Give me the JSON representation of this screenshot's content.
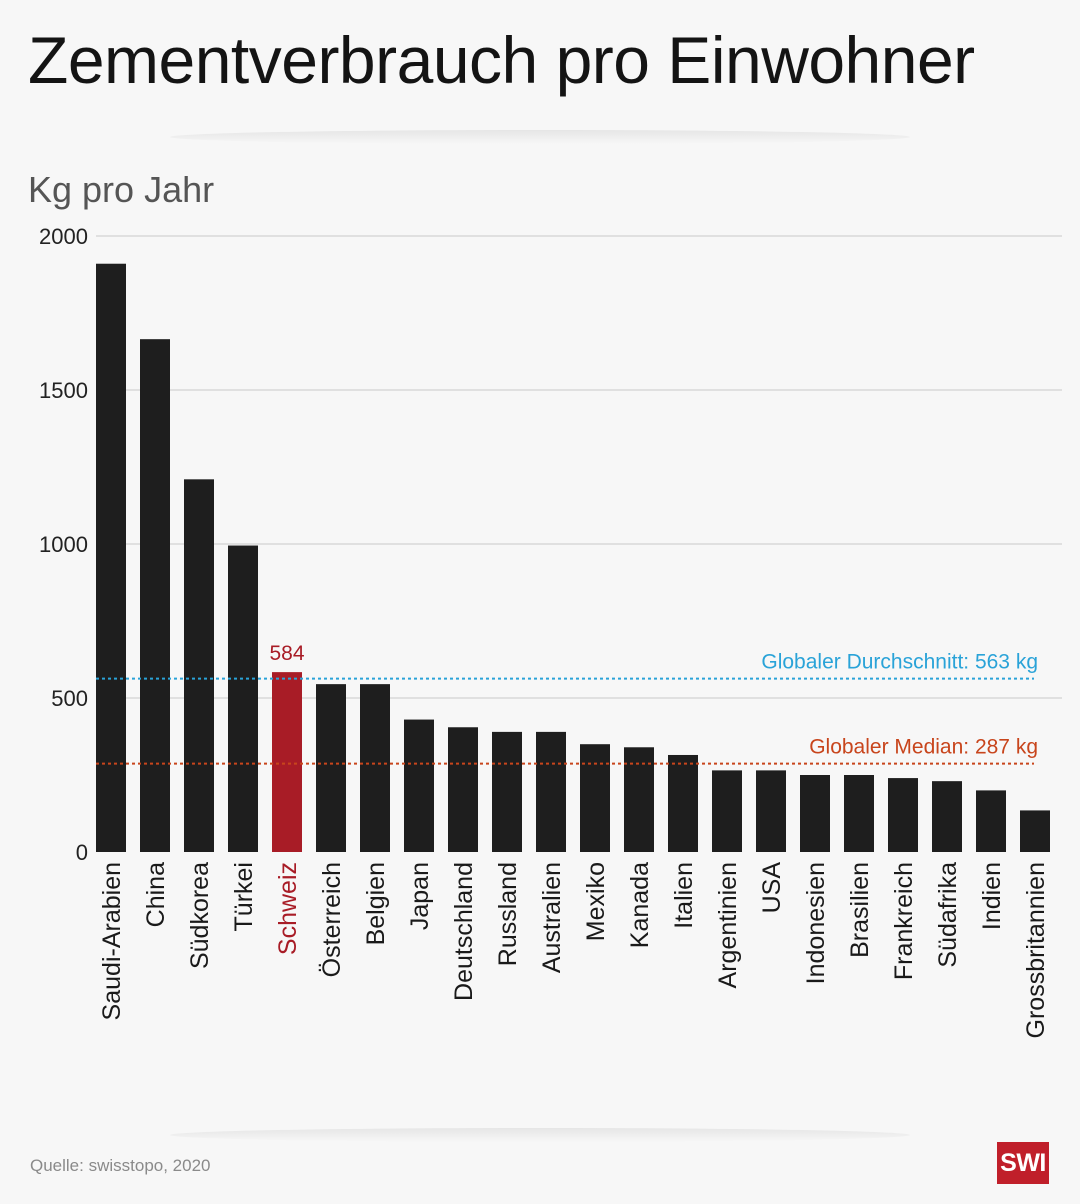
{
  "title": "Zementverbrauch pro Einwohner",
  "source": "Quelle:  swisstopo, 2020",
  "logo_text": "SWI",
  "colors": {
    "bar": "#1e1e1e",
    "highlight": "#a81c26",
    "average_line": "#2aa3d8",
    "median_line": "#c8451c",
    "grid": "#c8c8c8"
  },
  "chart_data": {
    "type": "bar",
    "ylabel": "Kg pro Jahr",
    "ylim": [
      0,
      2000
    ],
    "yticks": [
      0,
      500,
      1000,
      1500,
      2000
    ],
    "grid": true,
    "categories": [
      "Saudi-Arabien",
      "China",
      "Südkorea",
      "Türkei",
      "Schweiz",
      "Österreich",
      "Belgien",
      "Japan",
      "Deutschland",
      "Russland",
      "Australien",
      "Mexiko",
      "Kanada",
      "Italien",
      "Argentinien",
      "USA",
      "Indonesien",
      "Brasilien",
      "Frankreich",
      "Südafrika",
      "Indien",
      "Grossbritannien"
    ],
    "values": [
      1910,
      1665,
      1210,
      995,
      584,
      545,
      545,
      430,
      405,
      390,
      390,
      350,
      340,
      315,
      265,
      265,
      250,
      250,
      240,
      230,
      200,
      135
    ],
    "highlight": {
      "category": "Schweiz",
      "label": "584"
    },
    "reference_lines": [
      {
        "label": "Globaler Durchschnitt: 563 kg",
        "value": 563,
        "color": "#2aa3d8"
      },
      {
        "label": "Globaler Median: 287 kg",
        "value": 287,
        "color": "#c8451c"
      }
    ]
  }
}
